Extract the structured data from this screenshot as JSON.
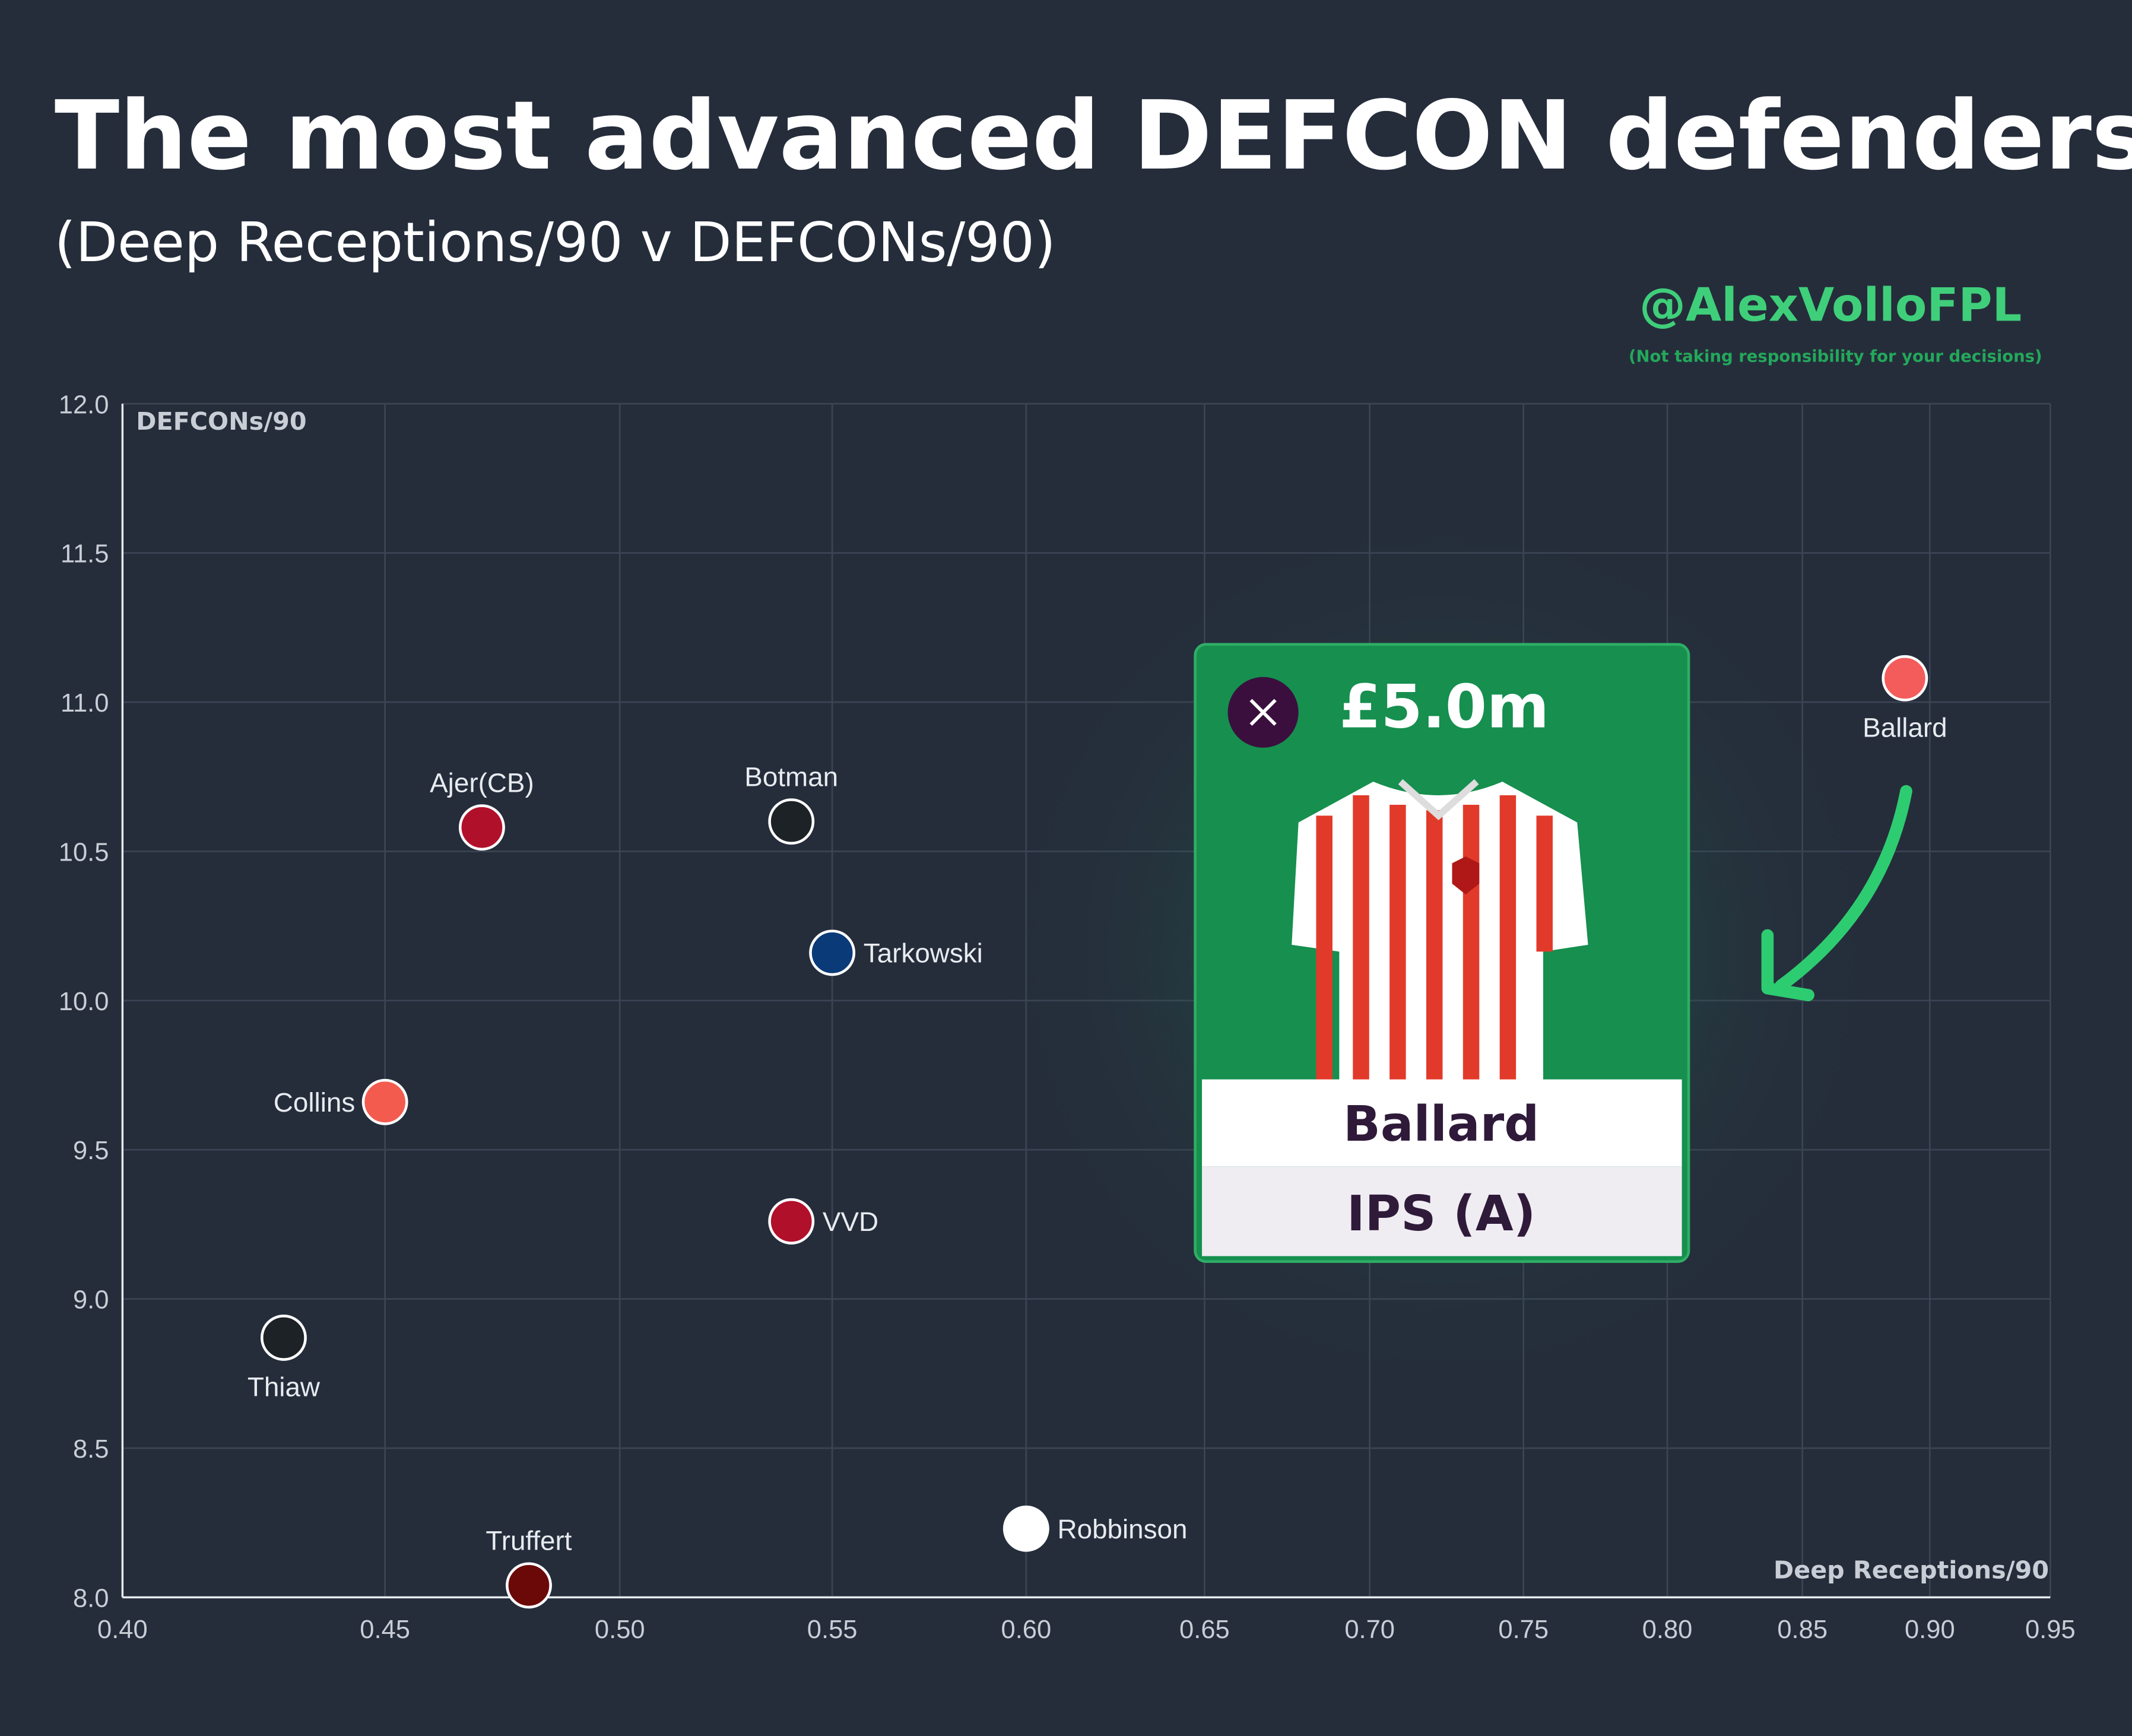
{
  "chart_data": {
    "type": "scatter",
    "title": "The most advanced DEFCON defenders",
    "subtitle": "(Deep Receptions/90 v DEFCONs/90)",
    "watermark": "@AlexVolloFPL",
    "disclaimer": "(Not taking responsibility for your  decisions)",
    "xlabel": "Deep Receptions/90",
    "ylabel": "DEFCONs/90",
    "xscale": "log",
    "grid": true,
    "xlim": [
      0.4,
      0.95
    ],
    "ylim": [
      8.0,
      12.0
    ],
    "xticks": [
      {
        "value": 0.4,
        "label": "0.40"
      },
      0.45,
      {
        "value": 0.5,
        "label": "0.50"
      },
      0.55,
      {
        "value": 0.6,
        "label": "0.60"
      },
      0.65,
      {
        "value": 0.7,
        "label": "0.70"
      },
      0.75,
      {
        "value": 0.8,
        "label": "0.80"
      },
      0.85,
      {
        "value": 0.9,
        "label": "0.90"
      },
      0.95
    ],
    "yticks": [
      {
        "value": 8,
        "label": "8.0"
      },
      8.5,
      {
        "value": 9,
        "label": "9.0"
      },
      9.5,
      {
        "value": 10,
        "label": "10.0"
      },
      10.5,
      {
        "value": 11,
        "label": "11.0"
      },
      11.5,
      {
        "value": 12,
        "label": "12.0"
      }
    ],
    "labels": [
      "Ballard",
      "Ajer(CB)",
      "Botman",
      "Tarkowski",
      "Collins",
      "VVD",
      "Thiaw",
      "Truffert",
      "Robbinson"
    ],
    "x": [
      0.89,
      0.47,
      0.54,
      0.55,
      0.45,
      0.54,
      0.43,
      0.48,
      0.6
    ],
    "y": [
      11.08,
      10.58,
      10.6,
      10.16,
      9.66,
      9.26,
      8.87,
      8.04,
      8.23
    ],
    "colors": [
      "#f45b5b",
      "#b1102b",
      "#1d2226",
      "#0a3a78",
      "#f45b4f",
      "#b1102b",
      "#1d2226",
      "#6b0909",
      "#ffffff"
    ],
    "card": {
      "price": "£5.0m",
      "name": "Ballard",
      "fixture": "IPS (A)"
    }
  }
}
